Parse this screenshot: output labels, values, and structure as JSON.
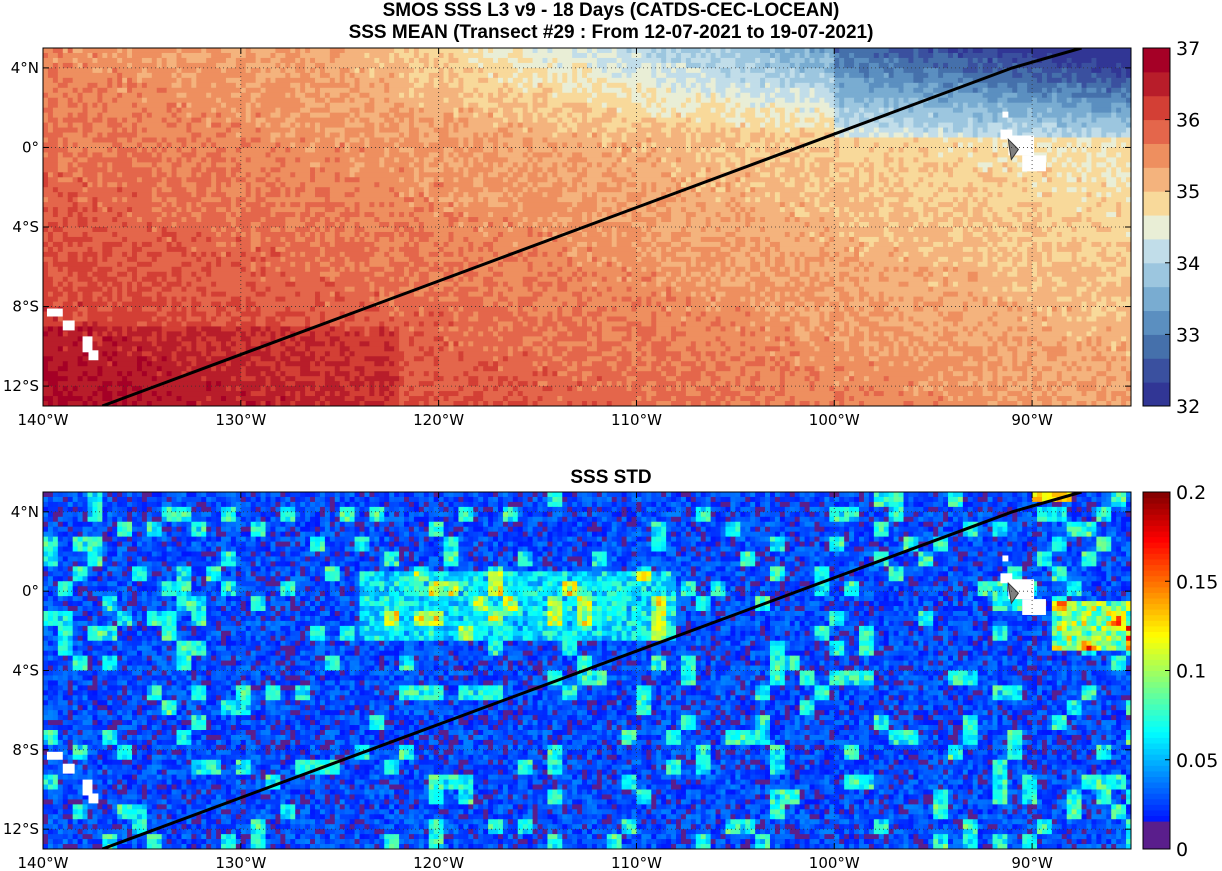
{
  "titles": {
    "line1": "SMOS SSS L3 v9 - 18 Days (CATDS-CEC-LOCEAN)",
    "line2": "SSS MEAN (Transect #29 : From 12-07-2021 to 19-07-2021)",
    "panel2": "SSS STD"
  },
  "chart_data": [
    {
      "type": "heatmap",
      "title": "SSS MEAN (Transect #29 : From 12-07-2021 to 19-07-2021)",
      "xlabel": "",
      "ylabel": "",
      "xlim": [
        -140,
        -85
      ],
      "ylim": [
        -13,
        5
      ],
      "x_ticks": [
        -140,
        -130,
        -120,
        -110,
        -100,
        -90
      ],
      "x_tick_labels": [
        "140°W",
        "130°W",
        "120°W",
        "110°W",
        "100°W",
        "90°W"
      ],
      "y_ticks": [
        4,
        0,
        -4,
        -8,
        -12
      ],
      "y_tick_labels": [
        "4°N",
        "0°",
        "4°S",
        "8°S",
        "12°S"
      ],
      "grid": true,
      "colormap": "blue-white-red (inverted RdYlBu)",
      "colorbar": {
        "min": 32,
        "max": 37,
        "ticks": [
          32,
          33,
          34,
          35,
          36,
          37
        ]
      },
      "field_summary": [
        {
          "region": "northeast (≈88-100°W, 0-5°N)",
          "value": 33.3
        },
        {
          "region": "north-central (≈100-112°W, 2-5°N)",
          "value": 34.2
        },
        {
          "region": "northwest (≈120-140°W, 1-5°N)",
          "value": 35.0
        },
        {
          "region": "equatorial band (0-4°S)",
          "value": 35.2
        },
        {
          "region": "central south (4-10°S)",
          "value": 35.4
        },
        {
          "region": "southwest (≈122-140°W, 9-13°S)",
          "value": 35.8
        }
      ],
      "transect_line": {
        "x": [
          -137,
          -91,
          -87.5
        ],
        "y": [
          -13,
          4,
          5
        ]
      },
      "land_mask": [
        "Galapagos near 91°W, 0°",
        "Marquesas near 139°W, 9°S"
      ]
    },
    {
      "type": "heatmap",
      "title": "SSS STD",
      "xlabel": "",
      "ylabel": "",
      "xlim": [
        -140,
        -85
      ],
      "ylim": [
        -13,
        5
      ],
      "x_ticks": [
        -140,
        -130,
        -120,
        -110,
        -100,
        -90
      ],
      "x_tick_labels": [
        "140°W",
        "130°W",
        "120°W",
        "110°W",
        "100°W",
        "90°W"
      ],
      "y_ticks": [
        4,
        0,
        -4,
        -8,
        -12
      ],
      "y_tick_labels": [
        "4°N",
        "0°",
        "4°S",
        "8°S",
        "12°S"
      ],
      "grid": true,
      "colormap": "jet",
      "colorbar": {
        "min": 0,
        "max": 0.2,
        "ticks": [
          0,
          0.05,
          0.1,
          0.15,
          0.2
        ],
        "tick_labels": [
          "0",
          "0.05",
          "0.1",
          "0.15",
          "0.2"
        ]
      },
      "field_summary": [
        {
          "region": "background",
          "value": 0.02
        },
        {
          "region": "equatorial patches (≈110-125°W, 0-2°S)",
          "value": 0.07
        },
        {
          "region": "hot spots near 88°W, 1-2°S",
          "value": 0.14
        },
        {
          "region": "peak near 89°W, 5°N",
          "value": 0.16
        }
      ],
      "transect_line": {
        "x": [
          -137,
          -91,
          -87.5
        ],
        "y": [
          -13,
          4,
          5
        ]
      },
      "land_mask": [
        "Galapagos near 91°W, 0°",
        "Marquesas near 139°W, 9°S"
      ]
    }
  ],
  "colors": {
    "frame": "#000000",
    "grid": "#333333",
    "land": "#ffffff",
    "galapagos_marker": "#808080"
  }
}
